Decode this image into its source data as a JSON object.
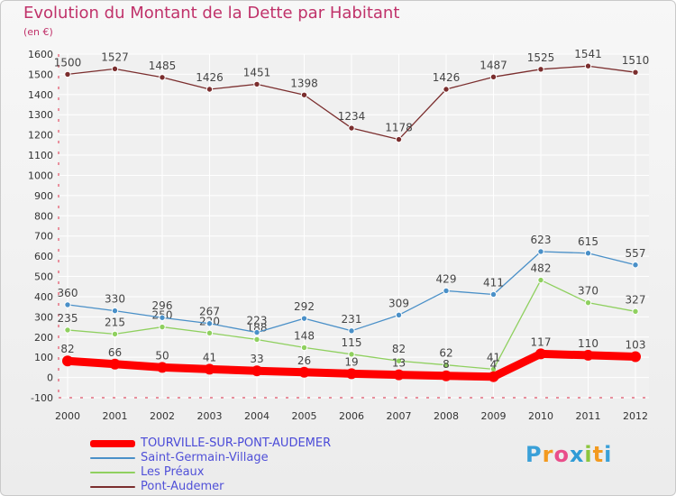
{
  "header": {
    "title": "Evolution du Montant de la Dette par Habitant",
    "subtitle": "(en €)"
  },
  "logo": {
    "letters": [
      "P",
      "r",
      "o",
      "x",
      "i",
      "t",
      "i"
    ],
    "colors": [
      "#3aa0d8",
      "#f39a1f",
      "#e94e8a",
      "#2f9bd6",
      "#8cc63e",
      "#f39a1f",
      "#3aa0d8"
    ]
  },
  "chart_data": {
    "type": "line",
    "title": "Evolution du Montant de la Dette par Habitant",
    "ylabel": "(en €)",
    "xlabel": "",
    "x": [
      "2000",
      "2001",
      "2002",
      "2003",
      "2004",
      "2005",
      "2006",
      "2007",
      "2008",
      "2009",
      "2010",
      "2011",
      "2012"
    ],
    "ylim": [
      -100,
      1600
    ],
    "yticks": [
      -100,
      0,
      100,
      200,
      300,
      400,
      500,
      600,
      700,
      800,
      900,
      1000,
      1100,
      1200,
      1300,
      1400,
      1500,
      1600
    ],
    "grid": true,
    "legend_position": "bottom-left",
    "series": [
      {
        "name": "TOURVILLE-SUR-PONT-AUDEMER",
        "color": "#ff0000",
        "values": [
          82,
          66,
          50,
          41,
          33,
          26,
          19,
          13,
          8,
          4,
          117,
          110,
          103
        ],
        "labels": [
          "82",
          "66",
          "50",
          "41",
          "33",
          "26",
          "19",
          "13",
          "8",
          "4",
          "117",
          "110",
          "103"
        ]
      },
      {
        "name": "Saint-Germain-Village",
        "color": "#4a90c8",
        "values": [
          360,
          330,
          296,
          267,
          223,
          292,
          231,
          309,
          429,
          411,
          623,
          615,
          557
        ],
        "labels": [
          "360",
          "330",
          "296",
          "267",
          "223",
          "292",
          "231",
          "309",
          "429",
          "411",
          "623",
          "615",
          "557"
        ]
      },
      {
        "name": "Les Préaux",
        "color": "#8fd05f",
        "values": [
          235,
          215,
          250,
          220,
          188,
          148,
          115,
          82,
          62,
          41,
          482,
          370,
          327
        ],
        "labels": [
          "235",
          "215",
          "250",
          "220",
          "188",
          "148",
          "115",
          "82",
          "62",
          "41",
          "482",
          "370",
          "327"
        ]
      },
      {
        "name": "Pont-Audemer",
        "color": "#7b2e2e",
        "values": [
          1500,
          1527,
          1485,
          1426,
          1451,
          1398,
          1234,
          1178,
          1426,
          1487,
          1525,
          1541,
          1510
        ],
        "labels": [
          "1500",
          "1527",
          "1485",
          "1426",
          "1451",
          "1398",
          "1234",
          "1178",
          "1426",
          "1487",
          "1525",
          "1541",
          "1510"
        ]
      }
    ]
  }
}
